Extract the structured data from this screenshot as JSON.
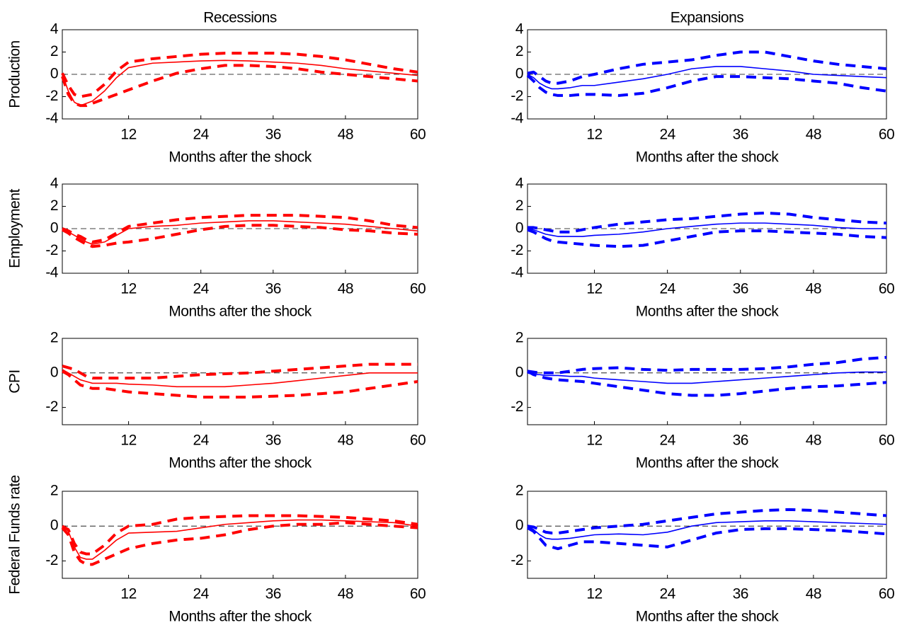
{
  "chart_data": [
    {
      "type": "line",
      "title": "Recessions",
      "ylabel": "Production",
      "xlabel": "Months after the shock",
      "x": [
        1,
        2,
        3,
        4,
        5,
        6,
        8,
        10,
        12,
        16,
        20,
        24,
        28,
        32,
        36,
        40,
        44,
        48,
        52,
        56,
        60
      ],
      "xlim": [
        1,
        60
      ],
      "xticks": [
        12,
        24,
        36,
        48,
        60
      ],
      "ylim": [
        -4,
        4
      ],
      "yticks": [
        -4,
        -2,
        0,
        2,
        4
      ],
      "zero_line": true,
      "series": [
        {
          "color": "#ff0000",
          "line_style": "solid",
          "line_width": 1.6,
          "values": [
            0,
            -1.5,
            -2.5,
            -2.8,
            -2.6,
            -2.4,
            -1.5,
            -0.3,
            0.6,
            1.0,
            1.1,
            1.2,
            1.25,
            1.2,
            1.1,
            1.0,
            0.8,
            0.5,
            0.3,
            0.1,
            -0.1
          ]
        },
        {
          "color": "#ff0000",
          "line_style": "dashed",
          "line_width": 4,
          "values": [
            0.1,
            -1.0,
            -1.8,
            -2.0,
            -1.9,
            -1.8,
            -0.9,
            0.3,
            1.1,
            1.4,
            1.6,
            1.8,
            1.9,
            1.9,
            1.9,
            1.8,
            1.6,
            1.3,
            0.9,
            0.5,
            0.2
          ]
        },
        {
          "color": "#ff0000",
          "line_style": "dashed",
          "line_width": 4,
          "values": [
            -0.2,
            -1.8,
            -2.6,
            -2.8,
            -2.8,
            -2.6,
            -2.2,
            -1.8,
            -1.4,
            -0.6,
            0.1,
            0.5,
            0.8,
            0.8,
            0.7,
            0.5,
            0.2,
            0,
            -0.2,
            -0.4,
            -0.6
          ]
        }
      ]
    },
    {
      "type": "line",
      "title": "Expansions",
      "xlabel": "Months after the shock",
      "x": [
        1,
        2,
        3,
        4,
        5,
        6,
        8,
        10,
        12,
        16,
        20,
        24,
        28,
        32,
        36,
        40,
        44,
        48,
        52,
        56,
        60
      ],
      "xlim": [
        1,
        60
      ],
      "xticks": [
        12,
        24,
        36,
        48,
        60
      ],
      "ylim": [
        -4,
        4
      ],
      "yticks": [
        -4,
        -2,
        0,
        2,
        4
      ],
      "zero_line": true,
      "series": [
        {
          "color": "#0000ff",
          "line_style": "solid",
          "line_width": 1.6,
          "values": [
            0,
            -0.3,
            -0.8,
            -1.1,
            -1.3,
            -1.3,
            -1.2,
            -1.0,
            -1.0,
            -0.7,
            -0.4,
            0,
            0.5,
            0.7,
            0.7,
            0.5,
            0.3,
            0,
            -0.1,
            -0.2,
            -0.3
          ]
        },
        {
          "color": "#0000ff",
          "line_style": "dashed",
          "line_width": 4,
          "values": [
            0.1,
            0.2,
            -0.2,
            -0.6,
            -0.8,
            -0.8,
            -0.6,
            -0.2,
            0,
            0.5,
            0.9,
            1.1,
            1.3,
            1.7,
            2.0,
            2.0,
            1.6,
            1.2,
            0.9,
            0.7,
            0.5
          ]
        },
        {
          "color": "#0000ff",
          "line_style": "dashed",
          "line_width": 4,
          "values": [
            -0.1,
            -0.6,
            -1.2,
            -1.6,
            -1.8,
            -1.9,
            -1.9,
            -1.8,
            -1.8,
            -1.9,
            -1.7,
            -1.2,
            -0.6,
            -0.2,
            -0.2,
            -0.3,
            -0.4,
            -0.6,
            -0.8,
            -1.2,
            -1.5
          ]
        }
      ]
    },
    {
      "type": "line",
      "ylabel": "Employment",
      "xlabel": "Months after the shock",
      "x": [
        1,
        2,
        3,
        4,
        5,
        6,
        8,
        10,
        12,
        16,
        20,
        24,
        28,
        32,
        36,
        40,
        44,
        48,
        52,
        56,
        60
      ],
      "xlim": [
        1,
        60
      ],
      "xticks": [
        12,
        24,
        36,
        48,
        60
      ],
      "ylim": [
        -4,
        4
      ],
      "yticks": [
        -4,
        -2,
        0,
        2,
        4
      ],
      "zero_line": true,
      "series": [
        {
          "color": "#ff0000",
          "line_style": "solid",
          "line_width": 1.6,
          "values": [
            0,
            -0.3,
            -0.6,
            -0.9,
            -1.2,
            -1.4,
            -1.2,
            -0.6,
            0,
            0.2,
            0.3,
            0.5,
            0.6,
            0.7,
            0.7,
            0.6,
            0.5,
            0.4,
            0.2,
            0,
            -0.2
          ]
        },
        {
          "color": "#ff0000",
          "line_style": "dashed",
          "line_width": 4,
          "values": [
            0,
            -0.2,
            -0.5,
            -0.7,
            -1.0,
            -1.2,
            -1.0,
            -0.4,
            0.2,
            0.5,
            0.8,
            1.0,
            1.1,
            1.2,
            1.2,
            1.2,
            1.1,
            1.0,
            0.7,
            0.3,
            0.1
          ]
        },
        {
          "color": "#ff0000",
          "line_style": "dashed",
          "line_width": 4,
          "values": [
            -0.1,
            -0.4,
            -0.8,
            -1.1,
            -1.4,
            -1.6,
            -1.5,
            -1.3,
            -1.2,
            -0.9,
            -0.5,
            -0.1,
            0.2,
            0.3,
            0.3,
            0.2,
            0.1,
            -0.1,
            -0.2,
            -0.4,
            -0.5
          ]
        }
      ]
    },
    {
      "type": "line",
      "xlabel": "Months after the shock",
      "x": [
        1,
        2,
        3,
        4,
        5,
        6,
        8,
        10,
        12,
        16,
        20,
        24,
        28,
        32,
        36,
        40,
        44,
        48,
        52,
        56,
        60
      ],
      "xlim": [
        1,
        60
      ],
      "xticks": [
        12,
        24,
        36,
        48,
        60
      ],
      "ylim": [
        -4,
        4
      ],
      "yticks": [
        -4,
        -2,
        0,
        2,
        4
      ],
      "zero_line": true,
      "series": [
        {
          "color": "#0000ff",
          "line_style": "solid",
          "line_width": 1.6,
          "values": [
            0,
            -0.1,
            -0.3,
            -0.5,
            -0.6,
            -0.7,
            -0.7,
            -0.7,
            -0.6,
            -0.5,
            -0.3,
            0,
            0.2,
            0.4,
            0.5,
            0.5,
            0.4,
            0.3,
            0.1,
            0,
            0
          ]
        },
        {
          "color": "#0000ff",
          "line_style": "dashed",
          "line_width": 4,
          "values": [
            0.1,
            0.1,
            0,
            -0.1,
            -0.2,
            -0.3,
            -0.3,
            -0.1,
            0.1,
            0.4,
            0.6,
            0.8,
            0.9,
            1.1,
            1.3,
            1.4,
            1.3,
            1.0,
            0.8,
            0.6,
            0.5
          ]
        },
        {
          "color": "#0000ff",
          "line_style": "dashed",
          "line_width": 4,
          "values": [
            -0.1,
            -0.3,
            -0.6,
            -0.9,
            -1.1,
            -1.2,
            -1.3,
            -1.4,
            -1.5,
            -1.6,
            -1.5,
            -1.1,
            -0.7,
            -0.3,
            -0.2,
            -0.2,
            -0.3,
            -0.4,
            -0.5,
            -0.7,
            -0.8
          ]
        }
      ]
    },
    {
      "type": "line",
      "ylabel": "CPI",
      "xlabel": "Months after the shock",
      "x": [
        1,
        2,
        3,
        4,
        5,
        6,
        8,
        10,
        12,
        16,
        20,
        24,
        28,
        32,
        36,
        40,
        44,
        48,
        52,
        56,
        60
      ],
      "xlim": [
        1,
        60
      ],
      "xticks": [
        12,
        24,
        36,
        48,
        60
      ],
      "ylim": [
        -3,
        2
      ],
      "yticks": [
        -2,
        0,
        2
      ],
      "zero_line": true,
      "series": [
        {
          "color": "#ff0000",
          "line_style": "solid",
          "line_width": 1.6,
          "values": [
            0.2,
            0,
            -0.2,
            -0.4,
            -0.5,
            -0.6,
            -0.6,
            -0.6,
            -0.65,
            -0.7,
            -0.8,
            -0.8,
            -0.8,
            -0.7,
            -0.6,
            -0.45,
            -0.3,
            -0.15,
            0,
            0,
            0
          ]
        },
        {
          "color": "#ff0000",
          "line_style": "dashed",
          "line_width": 4,
          "values": [
            0.4,
            0.3,
            0.2,
            0,
            -0.2,
            -0.3,
            -0.3,
            -0.3,
            -0.3,
            -0.3,
            -0.2,
            -0.1,
            -0.05,
            0,
            0.1,
            0.2,
            0.3,
            0.4,
            0.5,
            0.5,
            0.5
          ]
        },
        {
          "color": "#ff0000",
          "line_style": "dashed",
          "line_width": 4,
          "values": [
            0.1,
            -0.1,
            -0.4,
            -0.7,
            -0.8,
            -0.9,
            -0.9,
            -1.0,
            -1.1,
            -1.2,
            -1.3,
            -1.4,
            -1.4,
            -1.4,
            -1.35,
            -1.3,
            -1.2,
            -1.1,
            -0.9,
            -0.7,
            -0.5
          ]
        }
      ]
    },
    {
      "type": "line",
      "xlabel": "Months after the shock",
      "x": [
        1,
        2,
        3,
        4,
        5,
        6,
        8,
        10,
        12,
        16,
        20,
        24,
        28,
        32,
        36,
        40,
        44,
        48,
        52,
        56,
        60
      ],
      "xlim": [
        1,
        60
      ],
      "xticks": [
        12,
        24,
        36,
        48,
        60
      ],
      "ylim": [
        -3,
        2
      ],
      "yticks": [
        -2,
        0,
        2
      ],
      "zero_line": true,
      "series": [
        {
          "color": "#0000ff",
          "line_style": "solid",
          "line_width": 1.6,
          "values": [
            0,
            -0.1,
            -0.1,
            -0.15,
            -0.15,
            -0.15,
            -0.2,
            -0.2,
            -0.3,
            -0.4,
            -0.5,
            -0.6,
            -0.6,
            -0.5,
            -0.4,
            -0.3,
            -0.2,
            -0.1,
            0,
            0.05,
            0.05
          ]
        },
        {
          "color": "#0000ff",
          "line_style": "dashed",
          "line_width": 4,
          "values": [
            0.1,
            0.05,
            0,
            0,
            0,
            0,
            0.1,
            0.2,
            0.25,
            0.3,
            0.2,
            0.15,
            0.2,
            0.2,
            0.2,
            0.25,
            0.35,
            0.5,
            0.6,
            0.8,
            0.9
          ]
        },
        {
          "color": "#0000ff",
          "line_style": "dashed",
          "line_width": 4,
          "values": [
            0.1,
            -0.1,
            -0.2,
            -0.3,
            -0.35,
            -0.4,
            -0.45,
            -0.5,
            -0.6,
            -0.8,
            -1.0,
            -1.2,
            -1.3,
            -1.3,
            -1.2,
            -1.05,
            -0.9,
            -0.8,
            -0.75,
            -0.65,
            -0.55
          ]
        }
      ]
    },
    {
      "type": "line",
      "ylabel": "Federal Funds rate",
      "xlabel": "Months after the shock",
      "x": [
        1,
        2,
        3,
        4,
        5,
        6,
        8,
        10,
        12,
        16,
        20,
        24,
        28,
        32,
        36,
        40,
        44,
        48,
        52,
        56,
        60
      ],
      "xlim": [
        1,
        60
      ],
      "xticks": [
        12,
        24,
        36,
        48,
        60
      ],
      "ylim": [
        -3,
        2
      ],
      "yticks": [
        -2,
        0,
        2
      ],
      "zero_line": true,
      "series": [
        {
          "color": "#ff0000",
          "line_style": "solid",
          "line_width": 1.6,
          "values": [
            0,
            -0.3,
            -1.2,
            -1.8,
            -1.9,
            -1.9,
            -1.4,
            -0.8,
            -0.4,
            -0.35,
            -0.3,
            -0.1,
            0.1,
            0.2,
            0.3,
            0.35,
            0.35,
            0.3,
            0.25,
            0.2,
            0
          ]
        },
        {
          "color": "#ff0000",
          "line_style": "dashed",
          "line_width": 4,
          "values": [
            0,
            -0.2,
            -1.0,
            -1.5,
            -1.6,
            -1.6,
            -1.1,
            -0.4,
            0,
            0.1,
            0.4,
            0.5,
            0.55,
            0.6,
            0.6,
            0.6,
            0.55,
            0.5,
            0.4,
            0.3,
            0.1
          ]
        },
        {
          "color": "#ff0000",
          "line_style": "dashed",
          "line_width": 4,
          "values": [
            -0.1,
            -0.5,
            -1.5,
            -2.0,
            -2.2,
            -2.2,
            -1.9,
            -1.6,
            -1.3,
            -1.0,
            -0.8,
            -0.7,
            -0.5,
            -0.2,
            0,
            0.1,
            0.1,
            0.2,
            0.1,
            0,
            -0.1
          ]
        }
      ]
    },
    {
      "type": "line",
      "xlabel": "Months after the shock",
      "x": [
        1,
        2,
        3,
        4,
        5,
        6,
        8,
        10,
        12,
        16,
        20,
        24,
        28,
        32,
        36,
        40,
        44,
        48,
        52,
        56,
        60
      ],
      "xlim": [
        1,
        60
      ],
      "xticks": [
        12,
        24,
        36,
        48,
        60
      ],
      "ylim": [
        -3,
        2
      ],
      "yticks": [
        -2,
        0,
        2
      ],
      "zero_line": true,
      "series": [
        {
          "color": "#0000ff",
          "line_style": "solid",
          "line_width": 1.6,
          "values": [
            0,
            -0.2,
            -0.5,
            -0.7,
            -0.75,
            -0.75,
            -0.7,
            -0.6,
            -0.5,
            -0.45,
            -0.5,
            -0.35,
            0,
            0.2,
            0.25,
            0.3,
            0.3,
            0.25,
            0.2,
            0.15,
            0.1
          ]
        },
        {
          "color": "#0000ff",
          "line_style": "dashed",
          "line_width": 4,
          "values": [
            0,
            -0.05,
            -0.2,
            -0.35,
            -0.4,
            -0.4,
            -0.3,
            -0.2,
            -0.1,
            0,
            0.1,
            0.3,
            0.5,
            0.7,
            0.8,
            0.9,
            0.95,
            0.9,
            0.8,
            0.7,
            0.6
          ]
        },
        {
          "color": "#0000ff",
          "line_style": "dashed",
          "line_width": 4,
          "values": [
            -0.1,
            -0.3,
            -0.7,
            -1.1,
            -1.2,
            -1.3,
            -1.1,
            -0.9,
            -0.9,
            -1.0,
            -1.1,
            -1.2,
            -0.8,
            -0.4,
            -0.2,
            -0.15,
            -0.15,
            -0.2,
            -0.25,
            -0.35,
            -0.45
          ]
        }
      ]
    }
  ]
}
